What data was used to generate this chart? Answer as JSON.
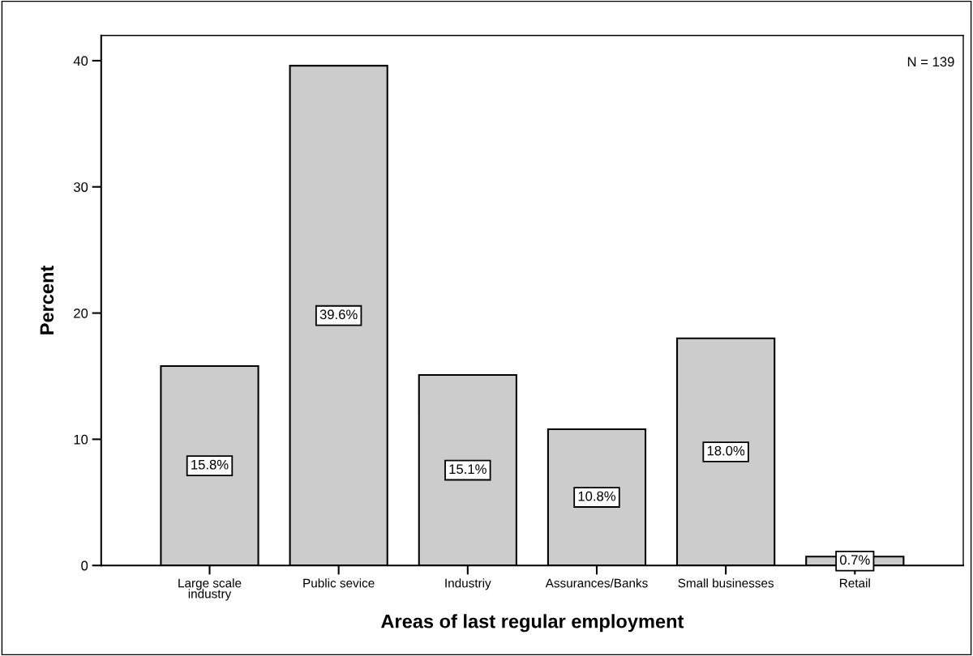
{
  "chart_data": {
    "type": "bar",
    "xlabel": "Areas of last regular employment",
    "ylabel": "Percent",
    "categories": [
      "Large scale\nindustry",
      "Public sevice",
      "Industriy",
      "Assurances/Banks",
      "Small businesses",
      "Retail"
    ],
    "values": [
      15.8,
      39.6,
      15.1,
      10.8,
      18.0,
      0.7
    ],
    "value_labels": [
      "15.8%",
      "39.6%",
      "15.1%",
      "10.8%",
      "18.0%",
      "0.7%"
    ],
    "color": "#cccccc",
    "ylim": [
      0,
      42
    ],
    "yticks": [
      0,
      10,
      20,
      30,
      40
    ],
    "grid": false,
    "legend": false,
    "annotations": [
      "N = 139"
    ]
  }
}
